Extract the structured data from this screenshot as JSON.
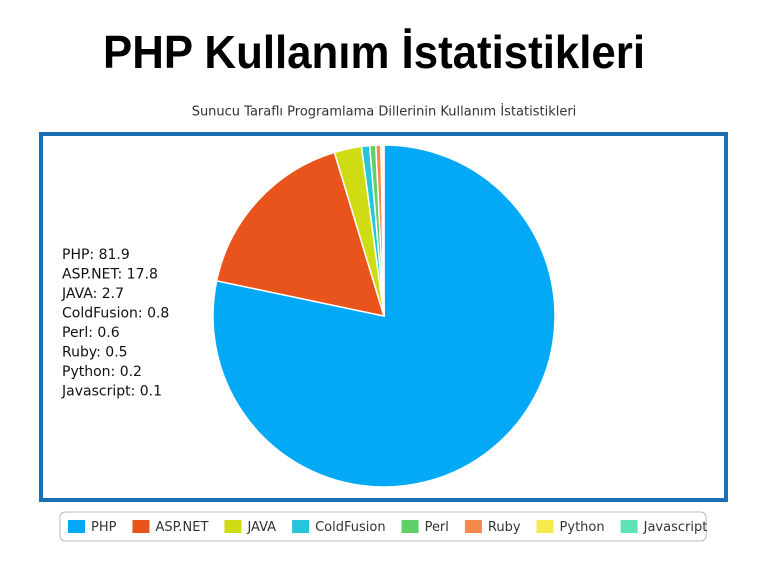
{
  "chart_data": {
    "type": "pie",
    "title": "PHP Kullanım İstatistikleri",
    "subtitle": "Sunucu Taraflı Programlama Dillerinin Kullanım İstatistikleri",
    "categories": [
      "PHP",
      "ASP.NET",
      "JAVA",
      "ColdFusion",
      "Perl",
      "Ruby",
      "Python",
      "Javascript"
    ],
    "values": [
      81.9,
      17.8,
      2.7,
      0.8,
      0.6,
      0.5,
      0.2,
      0.1
    ],
    "value_labels": [
      "PHP: 81.9",
      "ASP.NET: 17.8",
      "JAVA: 2.7",
      "ColdFusion: 0.8",
      "Perl: 0.6",
      "Ruby: 0.5",
      "Python: 0.2",
      "Javascript: 0.1"
    ],
    "colors": [
      "#03a9f4",
      "#e8541c",
      "#cfdc14",
      "#26c6da",
      "#5fd068",
      "#f4894b",
      "#f5e94e",
      "#5ee3b8"
    ],
    "legend": "bottom"
  }
}
